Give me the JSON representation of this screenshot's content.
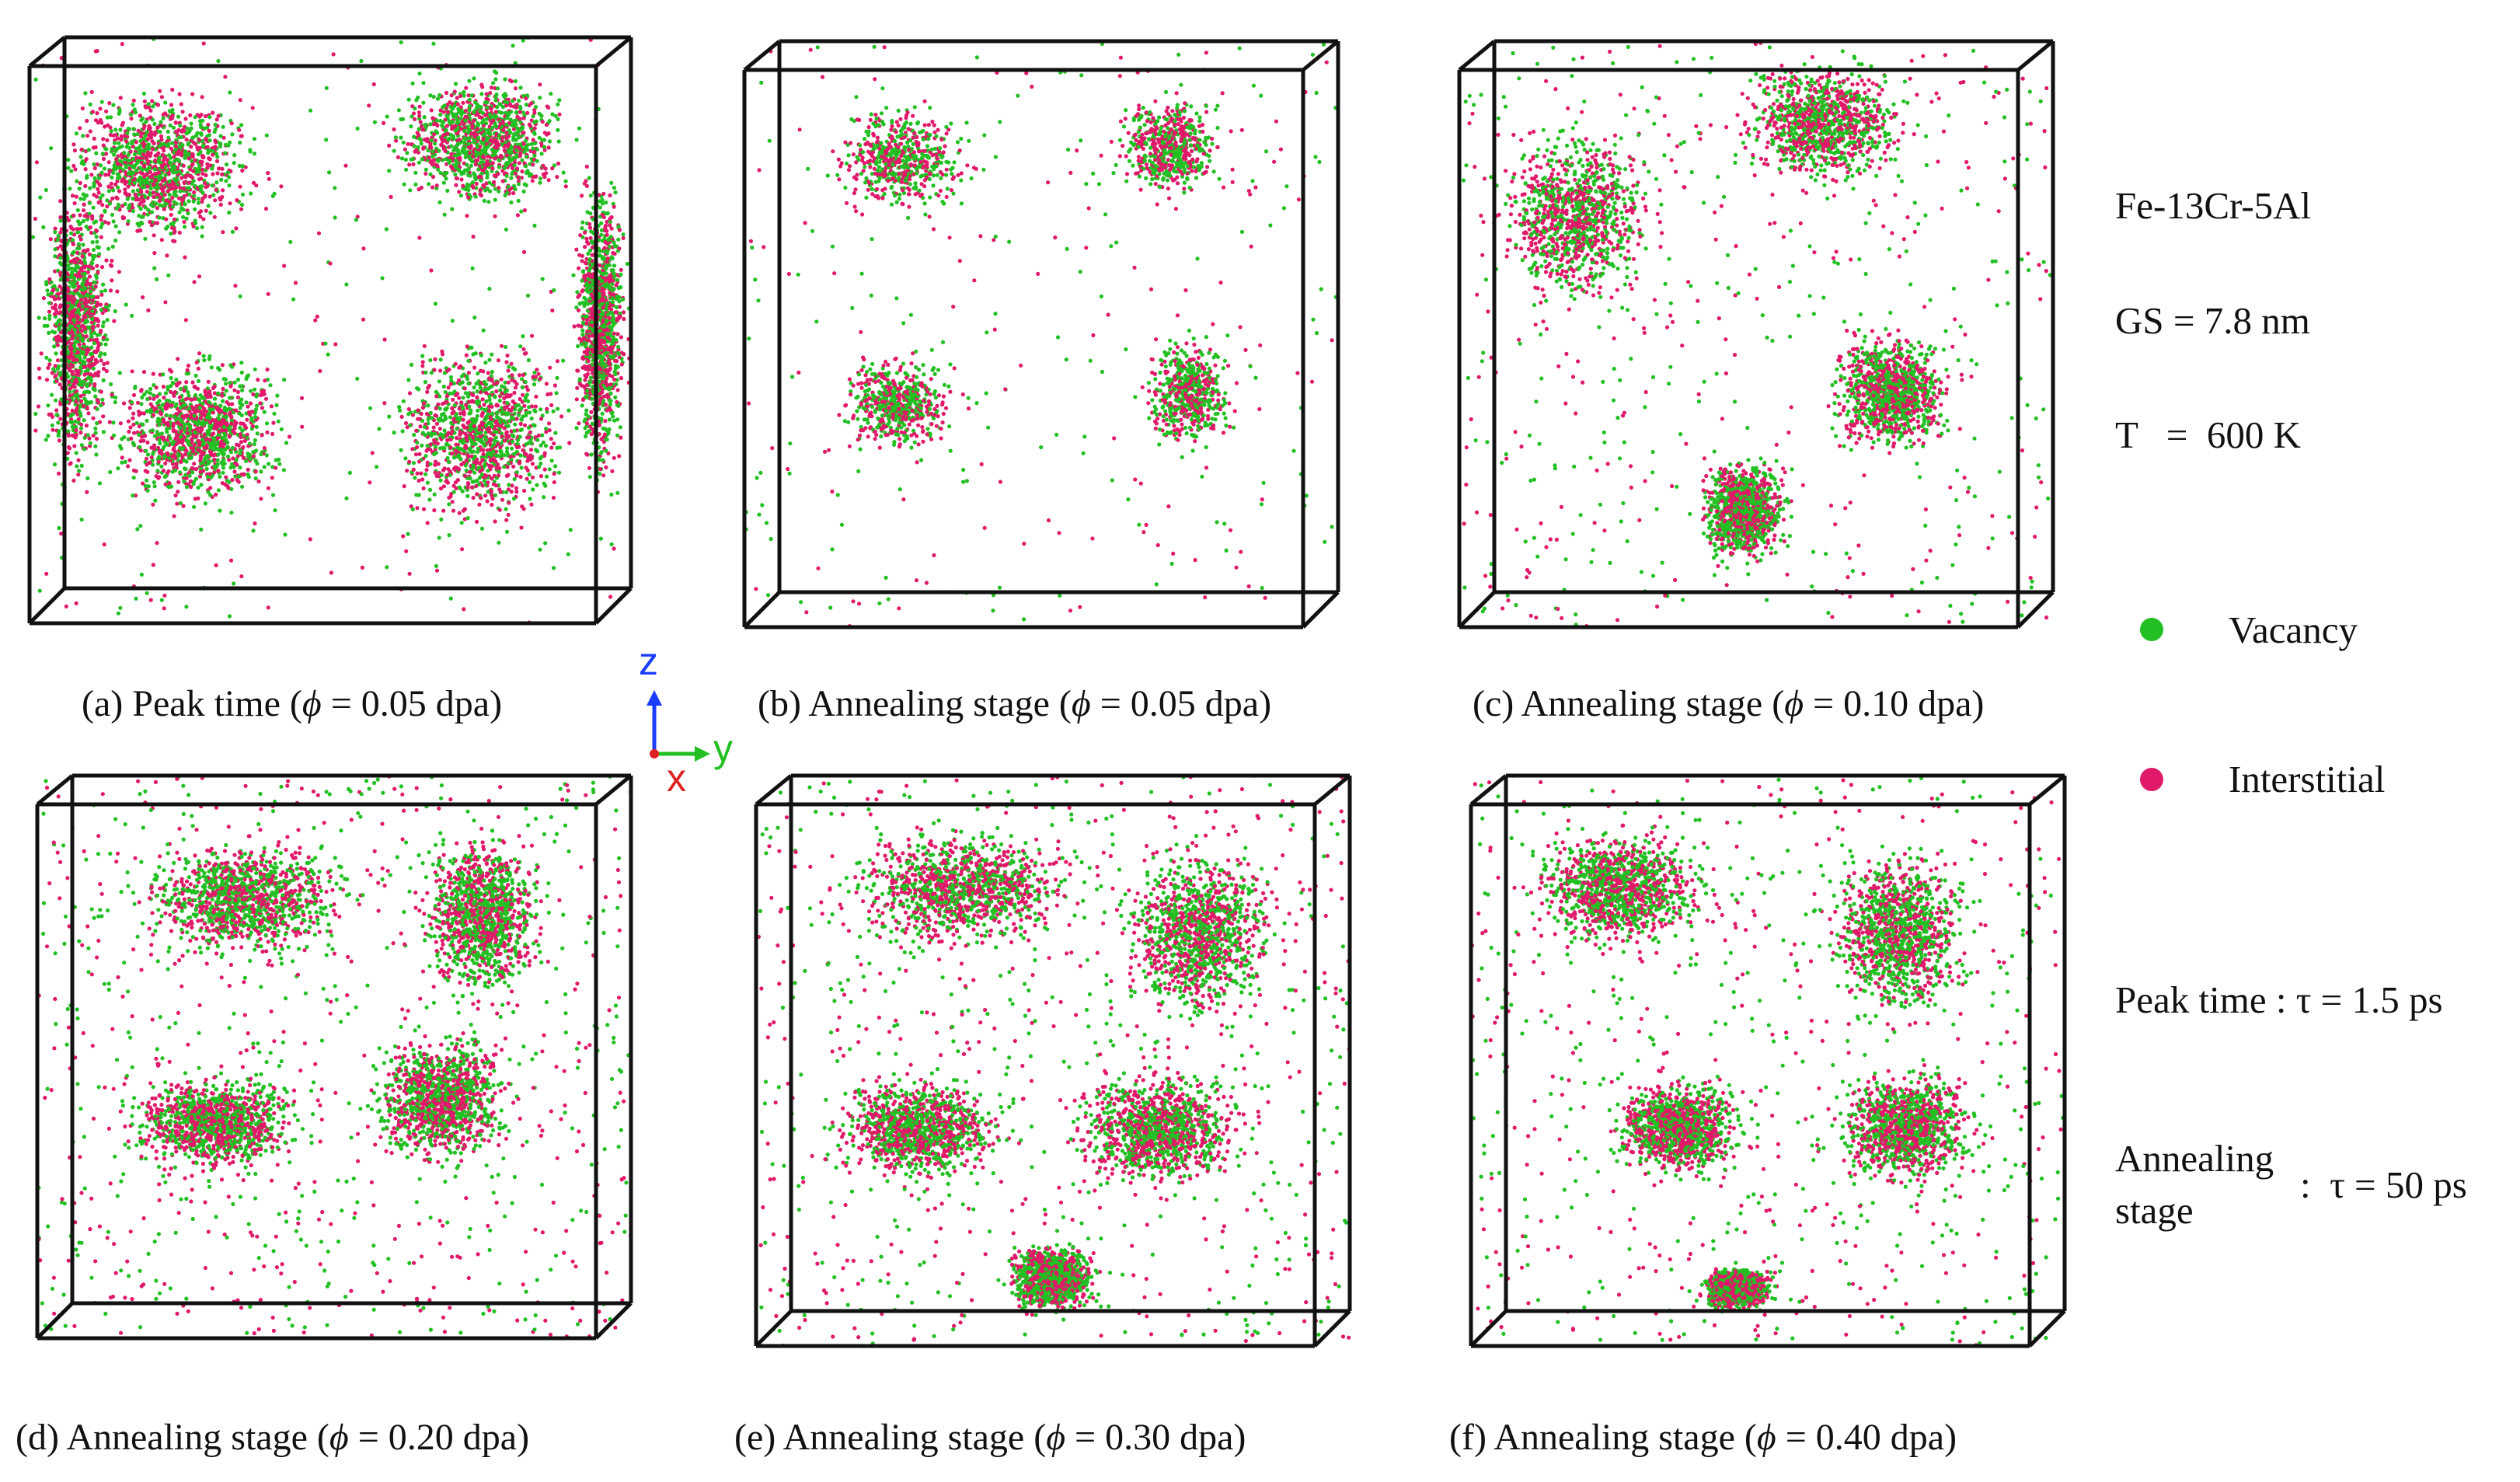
{
  "figure": {
    "panels": [
      {
        "id": "a",
        "caption_prefix": "(a) Peak time (",
        "phi_symbol": "ϕ",
        "caption_suffix": " = 0.05 dpa)",
        "stage": "Peak time",
        "dose_dpa": 0.05,
        "distribution": "dense"
      },
      {
        "id": "b",
        "caption_prefix": "(b) Annealing stage (",
        "phi_symbol": "ϕ",
        "caption_suffix": " = 0.05 dpa)",
        "stage": "Annealing stage",
        "dose_dpa": 0.05,
        "distribution": "sparse"
      },
      {
        "id": "c",
        "caption_prefix": "(c) Annealing stage (",
        "phi_symbol": "ϕ",
        "caption_suffix": " = 0.10 dpa)",
        "stage": "Annealing stage",
        "dose_dpa": 0.1,
        "distribution": "medium"
      },
      {
        "id": "d",
        "caption_prefix": "(d) Annealing stage (",
        "phi_symbol": "ϕ",
        "caption_suffix": " = 0.20 dpa)",
        "stage": "Annealing stage",
        "dose_dpa": 0.2,
        "distribution": "medium"
      },
      {
        "id": "e",
        "caption_prefix": "(e) Annealing stage (",
        "phi_symbol": "ϕ",
        "caption_suffix": " = 0.30 dpa)",
        "stage": "Annealing stage",
        "dose_dpa": 0.3,
        "distribution": "medium-dense"
      },
      {
        "id": "f",
        "caption_prefix": "(f) Annealing stage (",
        "phi_symbol": "ϕ",
        "caption_suffix": " = 0.40 dpa)",
        "stage": "Annealing stage",
        "dose_dpa": 0.4,
        "distribution": "medium-dense"
      }
    ],
    "axes": {
      "z": "z",
      "y": "y",
      "x": "x"
    },
    "info": {
      "material": "Fe-13Cr-5Al",
      "grain_size": "GS = 7.8 nm",
      "temperature": "T   =  600 K"
    },
    "legend": [
      {
        "label": "Vacancy",
        "color": "#22c022"
      },
      {
        "label": "Interstitial",
        "color": "#e0196a"
      }
    ],
    "timing": {
      "peak_label": "Peak time",
      "peak_value": ": τ = 1.5 ps",
      "annealing_line1": "Annealing",
      "annealing_line2": "stage",
      "annealing_value": ":  τ = 50 ps"
    },
    "colors": {
      "vacancy": "#22c022",
      "interstitial": "#e0196a",
      "box": "#111111",
      "axis_z": "#1a3cff",
      "axis_y": "#22c022",
      "axis_x": "#e02020"
    }
  }
}
